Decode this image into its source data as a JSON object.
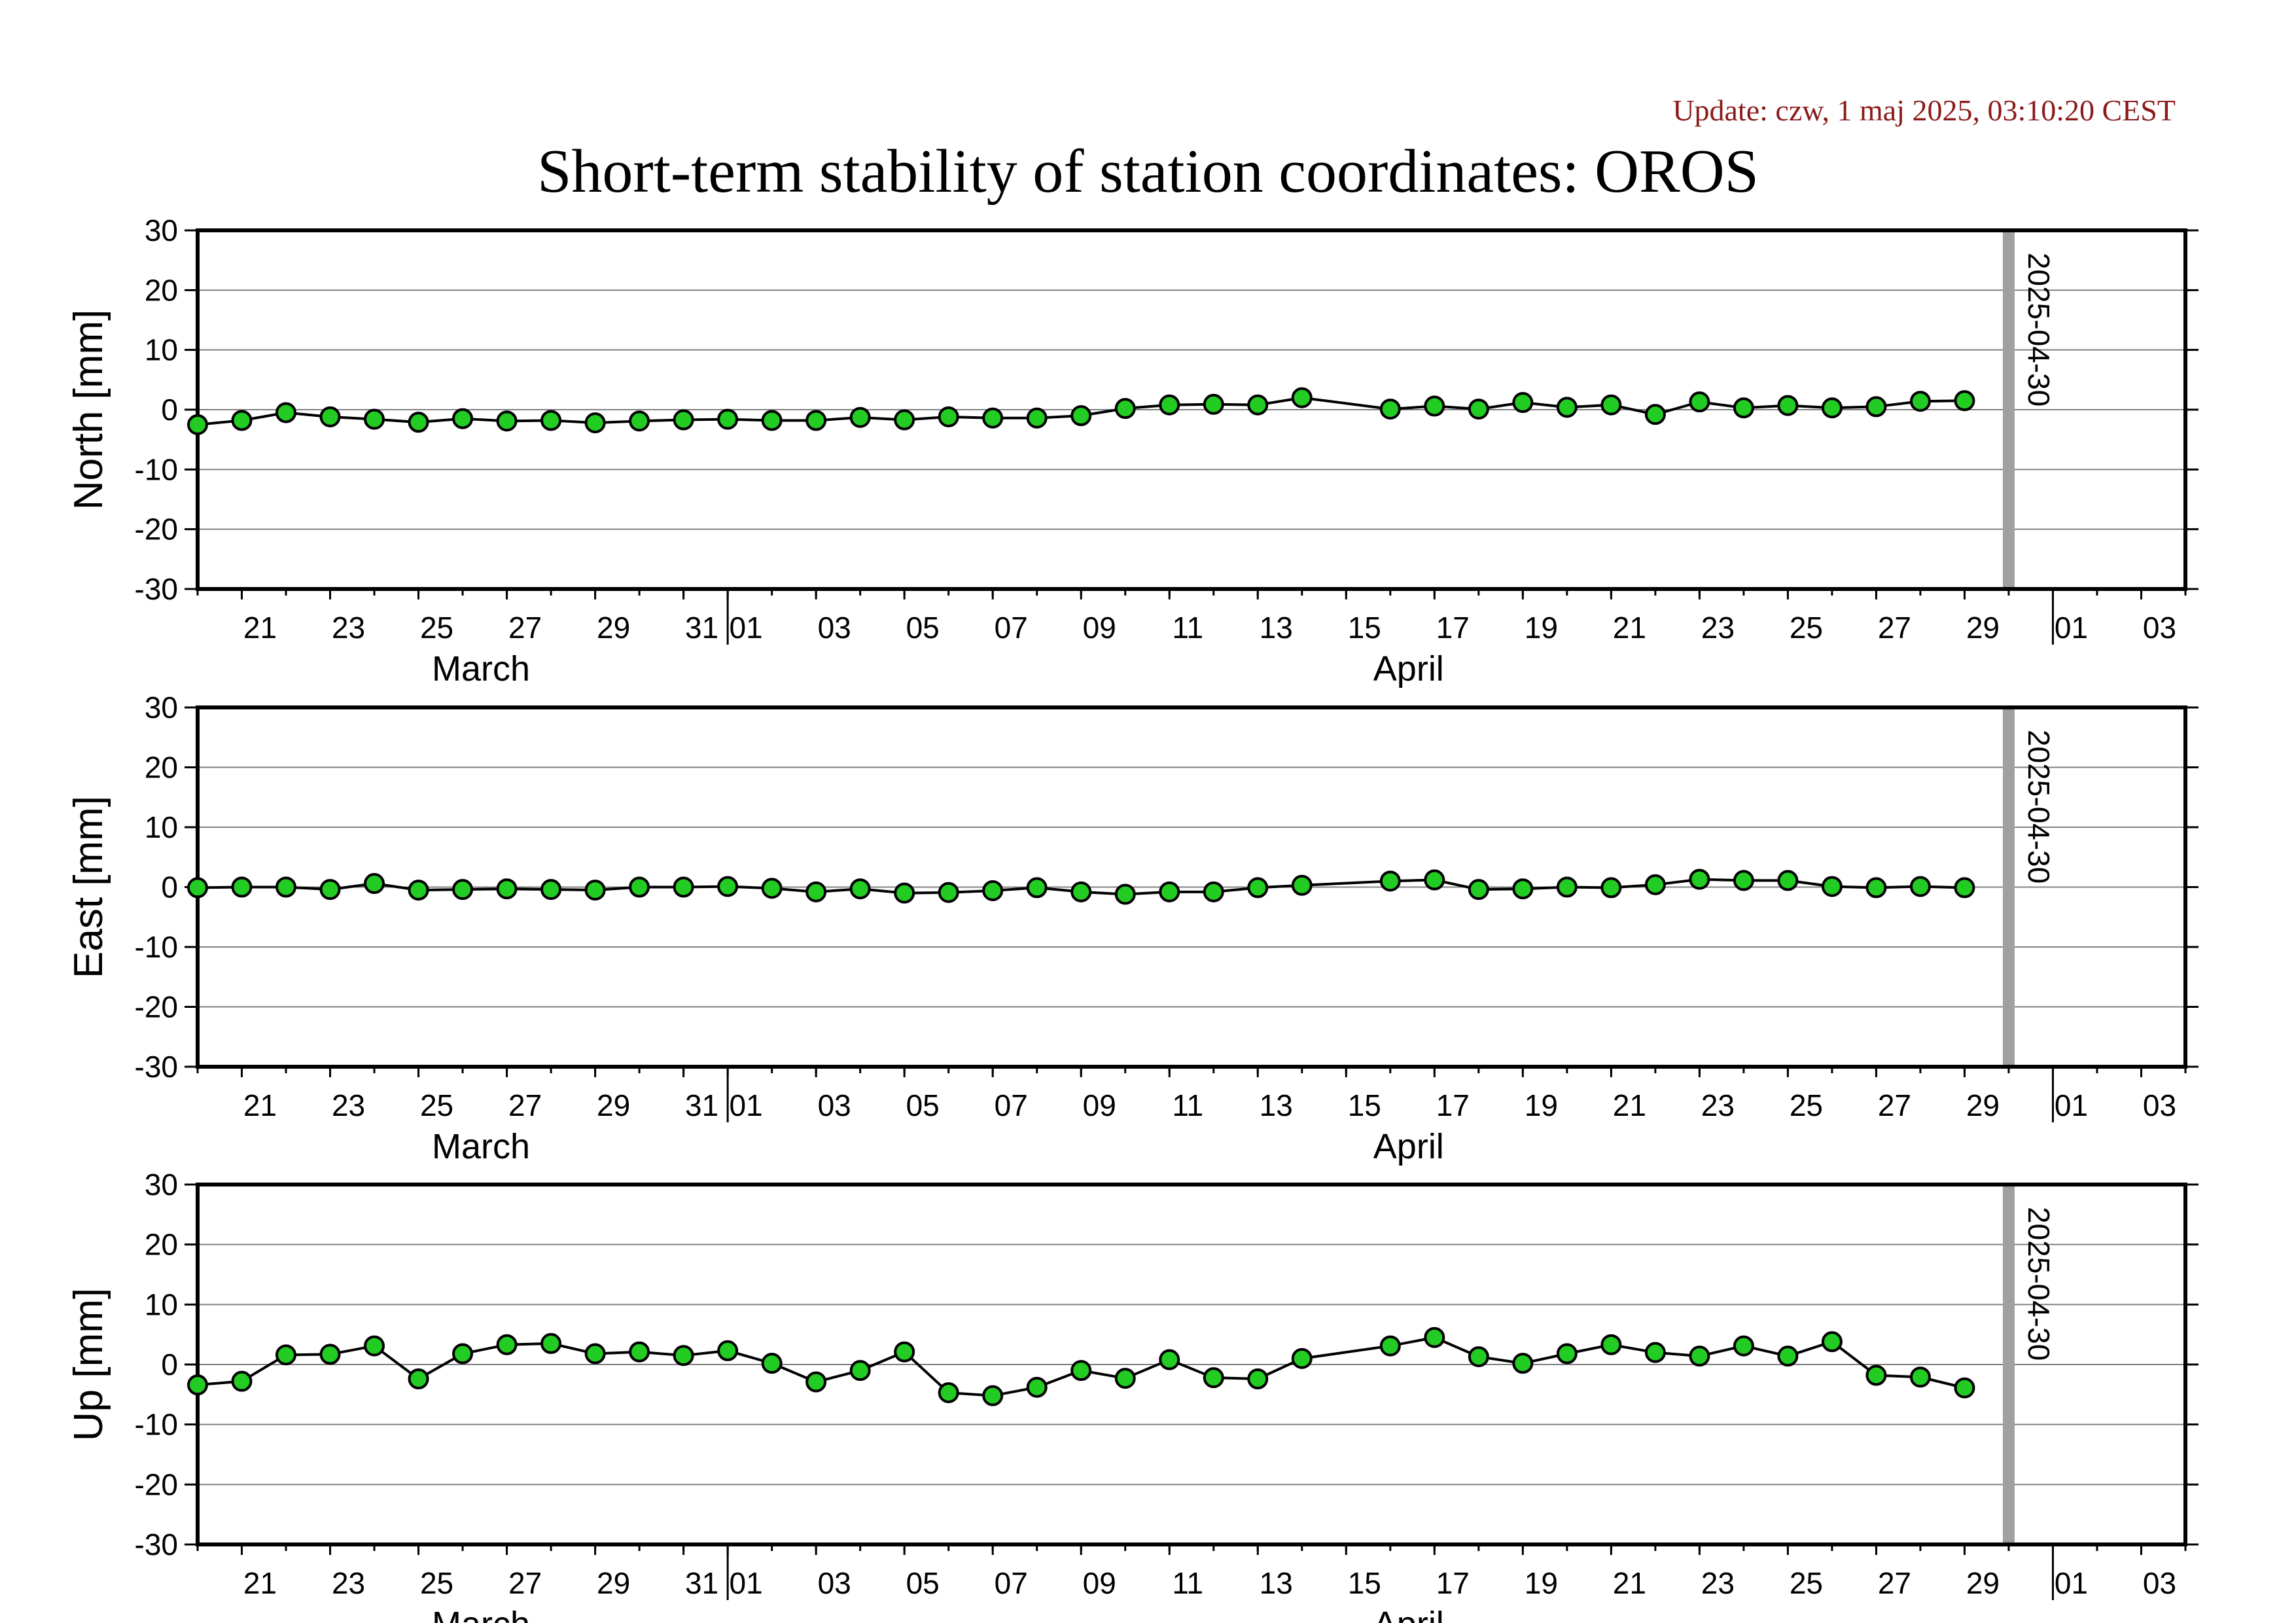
{
  "update": "Update: czw, 1 maj 2025, 03:10:20 CEST",
  "title": "Short-term stability of station coordinates: OROS",
  "colors": {
    "point": "#22cc22",
    "line": "#000000",
    "marker_bar": "#a0a0a0",
    "grid": "#808080",
    "update_text": "#8b1a1a"
  },
  "chart_data": [
    {
      "type": "line",
      "ylabel": "North [mm]",
      "ylim": [
        -30,
        30
      ],
      "yticks": [
        -30,
        -20,
        -10,
        0,
        10,
        20,
        30
      ],
      "xlim": [
        "2025-03-20",
        "2025-05-04"
      ],
      "grid": true,
      "x_tick_labels": [
        "21",
        "23",
        "25",
        "27",
        "29",
        "31",
        "01",
        "03",
        "05",
        "07",
        "09",
        "11",
        "13",
        "15",
        "17",
        "19",
        "21",
        "23",
        "25",
        "27",
        "29",
        "01",
        "03"
      ],
      "x_tick_dates": [
        "2025-03-21",
        "2025-03-23",
        "2025-03-25",
        "2025-03-27",
        "2025-03-29",
        "2025-03-31",
        "2025-04-01",
        "2025-04-03",
        "2025-04-05",
        "2025-04-07",
        "2025-04-09",
        "2025-04-11",
        "2025-04-13",
        "2025-04-15",
        "2025-04-17",
        "2025-04-19",
        "2025-04-21",
        "2025-04-23",
        "2025-04-25",
        "2025-04-27",
        "2025-04-29",
        "2025-05-01",
        "2025-05-03"
      ],
      "months": [
        {
          "label": "March",
          "date": "2025-03-26"
        },
        {
          "label": "April",
          "date": "2025-04-16"
        }
      ],
      "month_boundaries": [
        "2025-04-01",
        "2025-05-01"
      ],
      "marker": {
        "date": "2025-04-30",
        "label": "2025-04-30"
      },
      "series": [
        {
          "x": [
            "2025-03-20",
            "2025-03-21",
            "2025-03-22",
            "2025-03-23",
            "2025-03-24",
            "2025-03-25",
            "2025-03-26",
            "2025-03-27",
            "2025-03-28",
            "2025-03-29",
            "2025-03-30",
            "2025-03-31",
            "2025-04-01",
            "2025-04-02",
            "2025-04-03",
            "2025-04-04",
            "2025-04-05",
            "2025-04-06",
            "2025-04-07",
            "2025-04-08",
            "2025-04-09",
            "2025-04-10",
            "2025-04-11",
            "2025-04-12",
            "2025-04-13",
            "2025-04-14",
            "2025-04-16",
            "2025-04-17",
            "2025-04-18",
            "2025-04-19",
            "2025-04-20",
            "2025-04-21",
            "2025-04-22",
            "2025-04-23",
            "2025-04-24",
            "2025-04-25",
            "2025-04-26",
            "2025-04-27",
            "2025-04-28",
            "2025-04-29"
          ],
          "values": [
            -2.5,
            -1.8,
            -0.5,
            -1.2,
            -1.6,
            -2.1,
            -1.5,
            -1.9,
            -1.8,
            -2.2,
            -1.9,
            -1.7,
            -1.6,
            -1.8,
            -1.8,
            -1.3,
            -1.7,
            -1.2,
            -1.4,
            -1.4,
            -1.0,
            0.2,
            0.8,
            0.9,
            0.8,
            2.0,
            0.1,
            0.6,
            0.1,
            1.2,
            0.4,
            0.8,
            -0.8,
            1.3,
            0.3,
            0.7,
            0.3,
            0.5,
            1.4,
            1.5
          ]
        }
      ]
    },
    {
      "type": "line",
      "ylabel": "East [mm]",
      "ylim": [
        -30,
        30
      ],
      "yticks": [
        -30,
        -20,
        -10,
        0,
        10,
        20,
        30
      ],
      "xlim": [
        "2025-03-20",
        "2025-05-04"
      ],
      "grid": true,
      "x_tick_labels": [
        "21",
        "23",
        "25",
        "27",
        "29",
        "31",
        "01",
        "03",
        "05",
        "07",
        "09",
        "11",
        "13",
        "15",
        "17",
        "19",
        "21",
        "23",
        "25",
        "27",
        "29",
        "01",
        "03"
      ],
      "x_tick_dates": [
        "2025-03-21",
        "2025-03-23",
        "2025-03-25",
        "2025-03-27",
        "2025-03-29",
        "2025-03-31",
        "2025-04-01",
        "2025-04-03",
        "2025-04-05",
        "2025-04-07",
        "2025-04-09",
        "2025-04-11",
        "2025-04-13",
        "2025-04-15",
        "2025-04-17",
        "2025-04-19",
        "2025-04-21",
        "2025-04-23",
        "2025-04-25",
        "2025-04-27",
        "2025-04-29",
        "2025-05-01",
        "2025-05-03"
      ],
      "months": [
        {
          "label": "March",
          "date": "2025-03-26"
        },
        {
          "label": "April",
          "date": "2025-04-16"
        }
      ],
      "month_boundaries": [
        "2025-04-01",
        "2025-05-01"
      ],
      "marker": {
        "date": "2025-04-30",
        "label": "2025-04-30"
      },
      "series": [
        {
          "x": [
            "2025-03-20",
            "2025-03-21",
            "2025-03-22",
            "2025-03-23",
            "2025-03-24",
            "2025-03-25",
            "2025-03-26",
            "2025-03-27",
            "2025-03-28",
            "2025-03-29",
            "2025-03-30",
            "2025-03-31",
            "2025-04-01",
            "2025-04-02",
            "2025-04-03",
            "2025-04-04",
            "2025-04-05",
            "2025-04-06",
            "2025-04-07",
            "2025-04-08",
            "2025-04-09",
            "2025-04-10",
            "2025-04-11",
            "2025-04-12",
            "2025-04-13",
            "2025-04-14",
            "2025-04-16",
            "2025-04-17",
            "2025-04-18",
            "2025-04-19",
            "2025-04-20",
            "2025-04-21",
            "2025-04-22",
            "2025-04-23",
            "2025-04-24",
            "2025-04-25",
            "2025-04-26",
            "2025-04-27",
            "2025-04-28",
            "2025-04-29"
          ],
          "values": [
            -0.1,
            0.0,
            0.0,
            -0.4,
            0.6,
            -0.5,
            -0.4,
            -0.3,
            -0.4,
            -0.5,
            0.0,
            0.0,
            0.1,
            -0.2,
            -0.8,
            -0.3,
            -1.0,
            -0.9,
            -0.6,
            -0.1,
            -0.8,
            -1.2,
            -0.8,
            -0.8,
            -0.1,
            0.3,
            1.0,
            1.2,
            -0.4,
            -0.3,
            0.0,
            -0.1,
            0.4,
            1.3,
            1.1,
            1.1,
            0.1,
            -0.1,
            0.1,
            -0.1
          ]
        }
      ]
    },
    {
      "type": "line",
      "ylabel": "Up [mm]",
      "ylim": [
        -30,
        30
      ],
      "yticks": [
        -30,
        -20,
        -10,
        0,
        10,
        20,
        30
      ],
      "xlim": [
        "2025-03-20",
        "2025-05-04"
      ],
      "grid": true,
      "x_tick_labels": [
        "21",
        "23",
        "25",
        "27",
        "29",
        "31",
        "01",
        "03",
        "05",
        "07",
        "09",
        "11",
        "13",
        "15",
        "17",
        "19",
        "21",
        "23",
        "25",
        "27",
        "29",
        "01",
        "03"
      ],
      "x_tick_dates": [
        "2025-03-21",
        "2025-03-23",
        "2025-03-25",
        "2025-03-27",
        "2025-03-29",
        "2025-03-31",
        "2025-04-01",
        "2025-04-03",
        "2025-04-05",
        "2025-04-07",
        "2025-04-09",
        "2025-04-11",
        "2025-04-13",
        "2025-04-15",
        "2025-04-17",
        "2025-04-19",
        "2025-04-21",
        "2025-04-23",
        "2025-04-25",
        "2025-04-27",
        "2025-04-29",
        "2025-05-01",
        "2025-05-03"
      ],
      "months": [
        {
          "label": "March",
          "date": "2025-03-26"
        },
        {
          "label": "April",
          "date": "2025-04-16"
        }
      ],
      "month_boundaries": [
        "2025-04-01",
        "2025-05-01"
      ],
      "marker": {
        "date": "2025-04-30",
        "label": "2025-04-30"
      },
      "series": [
        {
          "x": [
            "2025-03-20",
            "2025-03-21",
            "2025-03-22",
            "2025-03-23",
            "2025-03-24",
            "2025-03-25",
            "2025-03-26",
            "2025-03-27",
            "2025-03-28",
            "2025-03-29",
            "2025-03-30",
            "2025-03-31",
            "2025-04-01",
            "2025-04-02",
            "2025-04-03",
            "2025-04-04",
            "2025-04-05",
            "2025-04-06",
            "2025-04-07",
            "2025-04-08",
            "2025-04-09",
            "2025-04-10",
            "2025-04-11",
            "2025-04-12",
            "2025-04-13",
            "2025-04-14",
            "2025-04-16",
            "2025-04-17",
            "2025-04-18",
            "2025-04-19",
            "2025-04-20",
            "2025-04-21",
            "2025-04-22",
            "2025-04-23",
            "2025-04-24",
            "2025-04-25",
            "2025-04-26",
            "2025-04-27",
            "2025-04-28",
            "2025-04-29"
          ],
          "values": [
            -3.4,
            -2.8,
            1.6,
            1.7,
            3.1,
            -2.4,
            1.8,
            3.3,
            3.5,
            1.8,
            2.1,
            1.5,
            2.3,
            0.2,
            -2.9,
            -1.0,
            2.1,
            -4.7,
            -5.2,
            -3.8,
            -1.0,
            -2.3,
            0.8,
            -2.2,
            -2.4,
            1.0,
            3.1,
            4.5,
            1.3,
            0.2,
            1.8,
            3.3,
            2.0,
            1.4,
            3.1,
            1.4,
            3.8,
            -1.8,
            -2.1,
            -3.9
          ]
        }
      ]
    }
  ]
}
